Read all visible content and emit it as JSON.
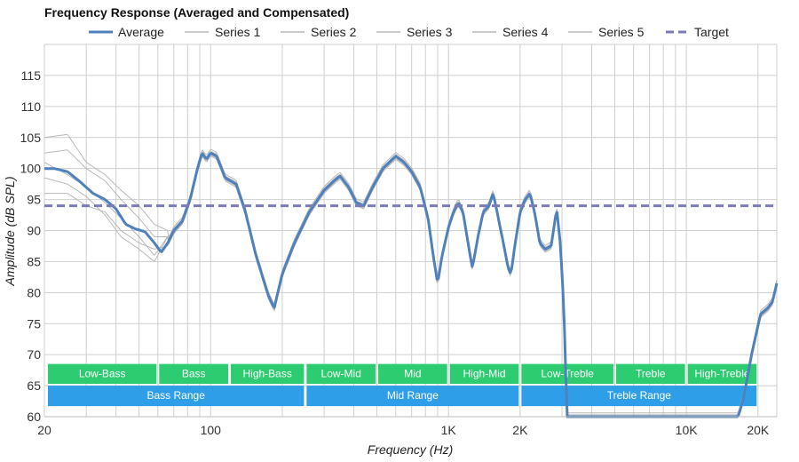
{
  "chart_data": {
    "type": "line",
    "title": "Frequency Response (Averaged and Compensated)",
    "xlabel": "Frequency (Hz)",
    "ylabel": "Amplitude (dB SPL)",
    "x_scale": "log",
    "xlim": [
      20,
      24000
    ],
    "ylim": [
      60,
      120
    ],
    "x_ticks": [
      {
        "value": 20,
        "label": "20"
      },
      {
        "value": 100,
        "label": "100"
      },
      {
        "value": 1000,
        "label": "1K"
      },
      {
        "value": 2000,
        "label": "2K"
      },
      {
        "value": 10000,
        "label": "10K"
      },
      {
        "value": 20000,
        "label": "20K"
      }
    ],
    "y_ticks": [
      60,
      65,
      70,
      75,
      80,
      85,
      90,
      95,
      100,
      105,
      110,
      115
    ],
    "grid": true,
    "legend_position": "top",
    "legend": [
      "Average",
      "Series 1",
      "Series 2",
      "Series 3",
      "Series 4",
      "Series 5",
      "Target"
    ],
    "colors": {
      "average": "#4f81bd",
      "series": "#b8b8b8",
      "target": "#7b7bb6",
      "band_top": "#2ecc71",
      "band_bottom": "#2e9ee8"
    },
    "series": [
      {
        "name": "Average",
        "style": "average",
        "offset": 0
      },
      {
        "name": "Series 1",
        "style": "thin",
        "offset": 0.6
      },
      {
        "name": "Series 2",
        "style": "thin",
        "offset": -0.5
      },
      {
        "name": "Series 3",
        "style": "thin",
        "offset": 0.3
      },
      {
        "name": "Series 4",
        "style": "thin",
        "offset": -0.3
      },
      {
        "name": "Series 5",
        "style": "thin",
        "offset": 0.15
      },
      {
        "name": "Target",
        "style": "target",
        "offset": 0
      }
    ],
    "average_points": [
      [
        20,
        100
      ],
      [
        22,
        100
      ],
      [
        25,
        99.5
      ],
      [
        28,
        98
      ],
      [
        32,
        96
      ],
      [
        36,
        95
      ],
      [
        40,
        93.5
      ],
      [
        44,
        91
      ],
      [
        48,
        90.3
      ],
      [
        53,
        89.8
      ],
      [
        58,
        88
      ],
      [
        62,
        86.5
      ],
      [
        66,
        88
      ],
      [
        70,
        90
      ],
      [
        76,
        91.5
      ],
      [
        82,
        95
      ],
      [
        88,
        100
      ],
      [
        92,
        102.5
      ],
      [
        96,
        101.5
      ],
      [
        100,
        102.5
      ],
      [
        106,
        102
      ],
      [
        115,
        98.5
      ],
      [
        128,
        97.5
      ],
      [
        140,
        93
      ],
      [
        155,
        86
      ],
      [
        175,
        79.5
      ],
      [
        185,
        77.5
      ],
      [
        200,
        83
      ],
      [
        225,
        88
      ],
      [
        260,
        93
      ],
      [
        300,
        96.5
      ],
      [
        330,
        98
      ],
      [
        350,
        98.8
      ],
      [
        380,
        97
      ],
      [
        410,
        94.5
      ],
      [
        440,
        94
      ],
      [
        480,
        97
      ],
      [
        530,
        100
      ],
      [
        600,
        102
      ],
      [
        650,
        101
      ],
      [
        700,
        99.5
      ],
      [
        760,
        97
      ],
      [
        820,
        92
      ],
      [
        870,
        85
      ],
      [
        900,
        81.5
      ],
      [
        940,
        86
      ],
      [
        1000,
        90.5
      ],
      [
        1050,
        93
      ],
      [
        1100,
        94.5
      ],
      [
        1150,
        93
      ],
      [
        1220,
        87
      ],
      [
        1260,
        84
      ],
      [
        1330,
        89
      ],
      [
        1400,
        93
      ],
      [
        1480,
        94
      ],
      [
        1540,
        96
      ],
      [
        1600,
        93
      ],
      [
        1700,
        88
      ],
      [
        1780,
        84
      ],
      [
        1830,
        83
      ],
      [
        1900,
        87.5
      ],
      [
        2000,
        93
      ],
      [
        2100,
        95
      ],
      [
        2200,
        96
      ],
      [
        2300,
        93
      ],
      [
        2420,
        88
      ],
      [
        2550,
        87
      ],
      [
        2700,
        87.5
      ],
      [
        2850,
        93.5
      ],
      [
        2950,
        88
      ],
      [
        3050,
        78
      ],
      [
        3150,
        60
      ],
      [
        16500,
        60
      ],
      [
        17400,
        63
      ],
      [
        18800,
        70
      ],
      [
        20500,
        76.5
      ],
      [
        22000,
        77.5
      ],
      [
        23000,
        78.5
      ],
      [
        24000,
        81.5
      ]
    ],
    "target_value": 94,
    "thin_variations": [
      [
        [
          20,
          102.5
        ],
        [
          25,
          103
        ],
        [
          30,
          100
        ],
        [
          36,
          98
        ],
        [
          42,
          95
        ],
        [
          50,
          92
        ],
        [
          58,
          89
        ],
        [
          66,
          89
        ]
      ],
      [
        [
          20,
          98.5
        ],
        [
          25,
          97.5
        ],
        [
          30,
          95.5
        ],
        [
          36,
          92.5
        ],
        [
          42,
          89
        ],
        [
          50,
          87
        ],
        [
          58,
          85
        ],
        [
          66,
          89
        ]
      ],
      [
        [
          20,
          105
        ],
        [
          25,
          105.5
        ],
        [
          30,
          101
        ],
        [
          36,
          99
        ],
        [
          42,
          96.5
        ],
        [
          50,
          94
        ],
        [
          58,
          91
        ],
        [
          66,
          90
        ]
      ],
      [
        [
          20,
          96
        ],
        [
          25,
          96
        ],
        [
          30,
          94
        ],
        [
          36,
          93
        ],
        [
          42,
          90
        ],
        [
          50,
          88
        ],
        [
          58,
          87
        ],
        [
          66,
          87.5
        ]
      ],
      [
        [
          20,
          101
        ],
        [
          25,
          99
        ],
        [
          30,
          97
        ],
        [
          36,
          94.5
        ],
        [
          42,
          92
        ],
        [
          50,
          89
        ],
        [
          58,
          86
        ],
        [
          66,
          89
        ]
      ]
    ],
    "bands_top": [
      {
        "label": "Low-Bass",
        "from": 20,
        "to": 60
      },
      {
        "label": "Bass",
        "from": 60,
        "to": 120
      },
      {
        "label": "High-Bass",
        "from": 120,
        "to": 250
      },
      {
        "label": "Low-Mid",
        "from": 250,
        "to": 500
      },
      {
        "label": "Mid",
        "from": 500,
        "to": 1000
      },
      {
        "label": "High-Mid",
        "from": 1000,
        "to": 2000
      },
      {
        "label": "Low-Treble",
        "from": 2000,
        "to": 5000
      },
      {
        "label": "Treble",
        "from": 5000,
        "to": 10000
      },
      {
        "label": "High-Treble",
        "from": 10000,
        "to": 20000
      }
    ],
    "bands_bottom": [
      {
        "label": "Bass Range",
        "from": 20,
        "to": 250
      },
      {
        "label": "Mid Range",
        "from": 250,
        "to": 2000
      },
      {
        "label": "Treble Range",
        "from": 2000,
        "to": 20000
      }
    ]
  }
}
